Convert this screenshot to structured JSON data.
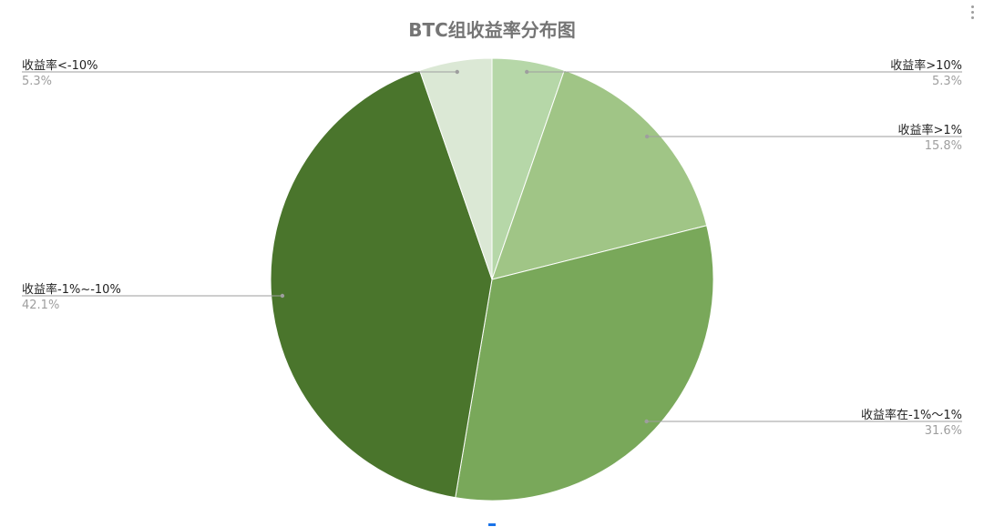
{
  "menu_icon": "vertical-dots-icon",
  "chart_data": {
    "type": "pie",
    "title": "BTC组收益率分布图",
    "start_angle_deg": 0,
    "direction": "clockwise",
    "legend": "none",
    "slices": [
      {
        "label": "收益率>10%",
        "percent_label": "5.3%",
        "value": 5.3,
        "color": "#b6d7a8"
      },
      {
        "label": "收益率>1%",
        "percent_label": "15.8%",
        "value": 15.8,
        "color": "#a0c586"
      },
      {
        "label": "收益率在-1%～1%",
        "percent_label": "31.6%",
        "value": 31.6,
        "color": "#79a85a"
      },
      {
        "label": "收益率-1%~-10%",
        "percent_label": "42.1%",
        "value": 42.1,
        "color": "#4a752c"
      },
      {
        "label": "收益率<-10%",
        "percent_label": "5.3%",
        "value": 5.3,
        "color": "#dbe8d5"
      }
    ]
  }
}
